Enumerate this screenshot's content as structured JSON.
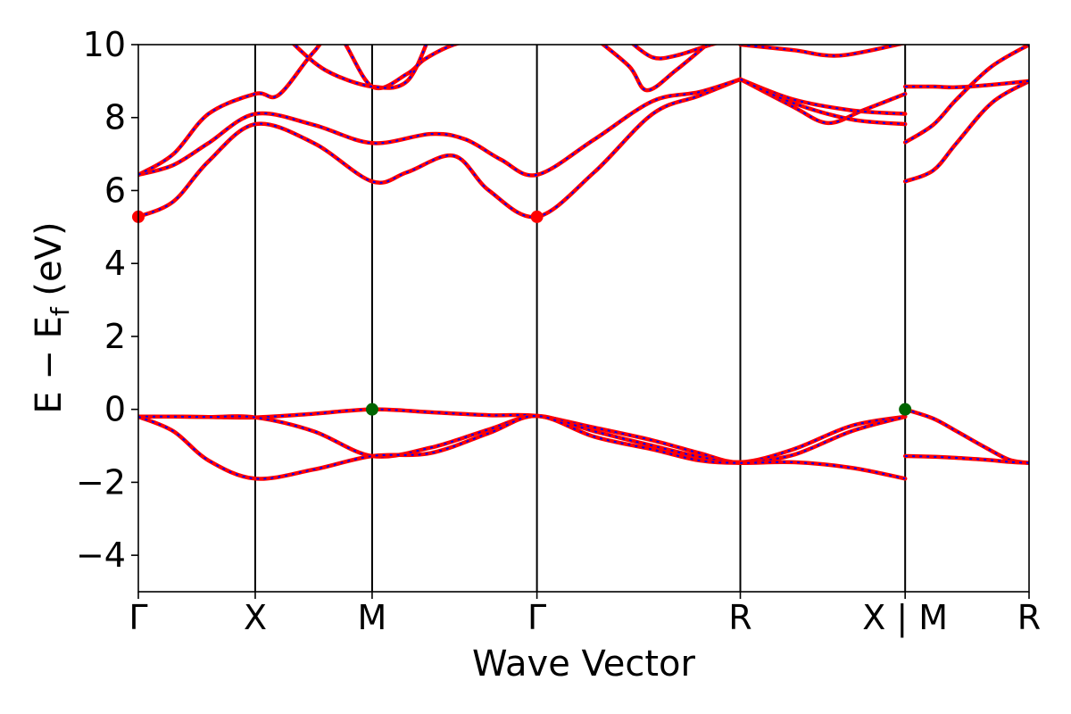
{
  "chart_data": {
    "type": "line",
    "xlabel": "Wave Vector",
    "ylabel": "E − E",
    "ylabel_sub": "f",
    "ylabel_unit": " (eV)",
    "ylim": [
      -5,
      10
    ],
    "yticks": [
      -4,
      -2,
      0,
      2,
      4,
      6,
      8,
      10
    ],
    "ytick_labels": [
      "−4",
      "−2",
      "0",
      "2",
      "4",
      "6",
      "8",
      "10"
    ],
    "xlim": [
      0,
      7.62
    ],
    "kpoints": [
      {
        "label": "Γ",
        "x": 0
      },
      {
        "label": "X",
        "x": 1.0
      },
      {
        "label": "M",
        "x": 2.0
      },
      {
        "label": "Γ",
        "x": 3.41
      },
      {
        "label": "R",
        "x": 5.15
      },
      {
        "label": "X | M",
        "x": 6.56
      },
      {
        "label": "R",
        "x": 7.62
      }
    ],
    "grid": false,
    "line_colors": {
      "primary": "#ff0000",
      "overlay": "#0000ff"
    },
    "marker_colors": {
      "cbm": "#ff0000",
      "vbm": "#006400"
    },
    "bands": [
      {
        "x": [
          0,
          0.3,
          0.6,
          1.0,
          1.5,
          2.0,
          2.5,
          3.0,
          3.41,
          3.9,
          4.4,
          4.8,
          5.15,
          5.6,
          6.1,
          6.56
        ],
        "y": [
          -0.2,
          -0.2,
          -0.21,
          -0.22,
          -0.12,
          0,
          -0.08,
          -0.16,
          -0.18,
          -0.5,
          -0.85,
          -1.2,
          -1.45,
          -1.1,
          -0.45,
          -0.2
        ]
      },
      {
        "x": [
          0,
          0.3,
          0.6,
          1.0,
          1.5,
          2.0,
          2.5,
          3.0,
          3.41,
          3.9,
          4.4,
          4.8,
          5.15,
          5.6,
          6.1,
          6.56
        ],
        "y": [
          -0.2,
          -0.2,
          -0.21,
          -0.22,
          -0.6,
          -1.28,
          -1.05,
          -0.55,
          -0.18,
          -0.6,
          -1.0,
          -1.3,
          -1.45,
          -1.25,
          -0.6,
          -0.2
        ]
      },
      {
        "x": [
          0,
          0.3,
          0.6,
          1.0,
          1.5,
          2.0,
          2.5,
          3.0,
          3.41,
          3.9,
          4.4,
          4.8,
          5.15,
          5.6,
          6.1,
          6.56
        ],
        "y": [
          -0.2,
          -0.6,
          -1.4,
          -1.9,
          -1.65,
          -1.28,
          -1.2,
          -0.65,
          -0.18,
          -0.75,
          -1.1,
          -1.4,
          -1.47,
          -1.45,
          -1.6,
          -1.9
        ]
      },
      {
        "x": [
          6.56,
          6.8,
          7.0,
          7.25,
          7.45,
          7.62
        ],
        "y": [
          0,
          -0.25,
          -0.6,
          -1.05,
          -1.38,
          -1.47
        ]
      },
      {
        "x": [
          6.56,
          6.8,
          7.0,
          7.25,
          7.45,
          7.62
        ],
        "y": [
          -1.28,
          -1.3,
          -1.33,
          -1.38,
          -1.44,
          -1.47
        ]
      },
      {
        "x": [
          0,
          0.3,
          0.6,
          1.0,
          1.5,
          2.0,
          2.3,
          2.7,
          3.0,
          3.41,
          3.9,
          4.4,
          4.8,
          5.15
        ],
        "y": [
          5.28,
          5.7,
          6.8,
          7.82,
          7.3,
          6.25,
          6.5,
          6.95,
          6.0,
          5.28,
          6.5,
          8.1,
          8.6,
          9.05
        ]
      },
      {
        "x": [
          0,
          0.3,
          0.6,
          1.0,
          1.5,
          2.0,
          2.5,
          2.8,
          3.1,
          3.41,
          3.9,
          4.4,
          4.8,
          5.15
        ],
        "y": [
          6.43,
          6.7,
          7.3,
          8.1,
          7.8,
          7.3,
          7.55,
          7.4,
          6.85,
          6.43,
          7.4,
          8.45,
          8.7,
          9.05
        ]
      },
      {
        "x": [
          0,
          0.3,
          0.6,
          1.0,
          1.2,
          1.5,
          1.7,
          2.0,
          2.3,
          2.45,
          2.7,
          3.0
        ],
        "y": [
          6.43,
          7.0,
          8.1,
          8.65,
          8.62,
          9.8,
          10.3,
          8.85,
          9.2,
          9.6,
          10.0,
          10.2
        ]
      },
      {
        "x": [
          1.3,
          1.6,
          2.0,
          2.3,
          2.5
        ],
        "y": [
          10.1,
          9.3,
          8.85,
          9.0,
          10.3
        ]
      },
      {
        "x": [
          5.15,
          5.6,
          5.9,
          6.2,
          6.56
        ],
        "y": [
          9.05,
          8.3,
          7.85,
          8.2,
          8.65
        ]
      },
      {
        "x": [
          5.15,
          5.6,
          6.1,
          6.56
        ],
        "y": [
          9.05,
          8.5,
          8.2,
          8.1
        ]
      },
      {
        "x": [
          5.15,
          5.6,
          6.1,
          6.56
        ],
        "y": [
          9.05,
          8.4,
          7.95,
          7.82
        ]
      },
      {
        "x": [
          6.56,
          6.8,
          7.0,
          7.3,
          7.62
        ],
        "y": [
          6.25,
          6.55,
          7.3,
          8.4,
          9.0
        ]
      },
      {
        "x": [
          6.56,
          6.8,
          7.0,
          7.3,
          7.62
        ],
        "y": [
          7.32,
          7.8,
          8.5,
          9.4,
          10.0
        ]
      },
      {
        "x": [
          6.56,
          6.8,
          7.0,
          7.3,
          7.62
        ],
        "y": [
          8.85,
          8.85,
          8.83,
          8.9,
          9.0
        ]
      },
      {
        "x": [
          4.2,
          4.4,
          4.6,
          4.9,
          5.15
        ],
        "y": [
          10.1,
          9.65,
          9.7,
          10.0,
          10.2
        ]
      },
      {
        "x": [
          3.9,
          4.2,
          4.35,
          4.6,
          4.9
        ],
        "y": [
          10.2,
          9.4,
          8.75,
          9.3,
          10.1
        ]
      },
      {
        "x": [
          5.15,
          5.6,
          6.0,
          6.56
        ],
        "y": [
          10.0,
          9.85,
          9.7,
          10.05
        ]
      }
    ],
    "extrema_points": [
      {
        "x": 0,
        "y": 5.28,
        "kind": "cbm"
      },
      {
        "x": 3.41,
        "y": 5.28,
        "kind": "cbm"
      },
      {
        "x": 2.0,
        "y": 0,
        "kind": "vbm"
      },
      {
        "x": 6.56,
        "y": 0,
        "kind": "vbm"
      }
    ]
  }
}
